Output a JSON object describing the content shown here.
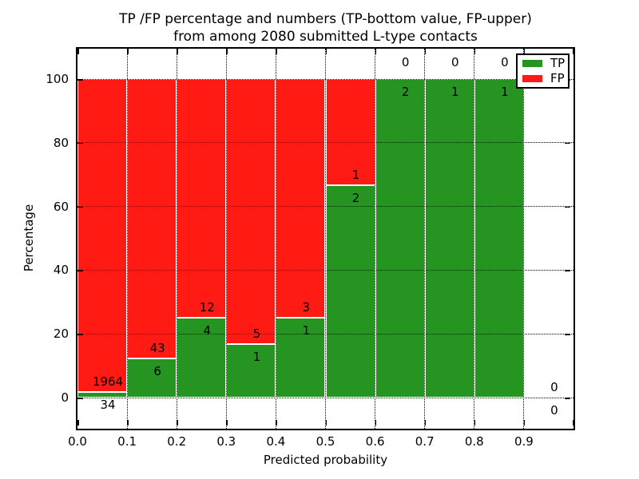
{
  "title": {
    "line1": "TP /FP percentage and numbers (TP-bottom value, FP-upper)",
    "line2": "from among 2080 submitted L-type contacts"
  },
  "y_axis": {
    "label": "Percentage",
    "tick_labels": [
      "0",
      "20",
      "40",
      "60",
      "80",
      "100"
    ],
    "tick_values": [
      0,
      20,
      40,
      60,
      80,
      100
    ]
  },
  "x_axis": {
    "label": "Predicted probability",
    "tick_labels": [
      "0.0",
      "0.1",
      "0.2",
      "0.3",
      "0.4",
      "0.5",
      "0.6",
      "0.7",
      "0.8",
      "0.9"
    ],
    "tick_values": [
      0.0,
      0.1,
      0.2,
      0.3,
      0.4,
      0.5,
      0.6,
      0.7,
      0.8,
      0.9
    ]
  },
  "legend": {
    "items": [
      {
        "label": "TP",
        "color": "#259421"
      },
      {
        "label": "FP",
        "color": "#ff1b14"
      }
    ]
  },
  "colors": {
    "tp": "#259421",
    "fp": "#ff1b14",
    "grid": "#000000",
    "bar_edge": "#ffffff",
    "background": "#ffffff"
  },
  "chart_data": {
    "type": "bar",
    "stacked": true,
    "normalized_to_percent": true,
    "title": "TP /FP percentage and numbers (TP-bottom value, FP-upper) from among 2080 submitted L-type contacts",
    "xlabel": "Predicted probability",
    "ylabel": "Percentage",
    "xlim": [
      0.0,
      1.0
    ],
    "ylim": [
      -10,
      110
    ],
    "grid": true,
    "legend_position": "upper right",
    "total_contacts": 2080,
    "x_bins": [
      [
        0.0,
        0.1
      ],
      [
        0.1,
        0.2
      ],
      [
        0.2,
        0.3
      ],
      [
        0.3,
        0.4
      ],
      [
        0.4,
        0.5
      ],
      [
        0.5,
        0.6
      ],
      [
        0.6,
        0.7
      ],
      [
        0.7,
        0.8
      ],
      [
        0.8,
        0.9
      ],
      [
        0.9,
        1.0
      ]
    ],
    "series": [
      {
        "name": "TP",
        "color": "#259421",
        "counts": [
          34,
          6,
          4,
          1,
          1,
          2,
          2,
          1,
          1,
          0
        ]
      },
      {
        "name": "FP",
        "color": "#ff1b14",
        "counts": [
          1964,
          43,
          12,
          5,
          3,
          1,
          0,
          0,
          0,
          0
        ]
      }
    ],
    "tp_percentages": [
      1.7,
      12.24,
      25.0,
      16.67,
      25.0,
      66.67,
      100.0,
      100.0,
      100.0,
      null
    ]
  }
}
